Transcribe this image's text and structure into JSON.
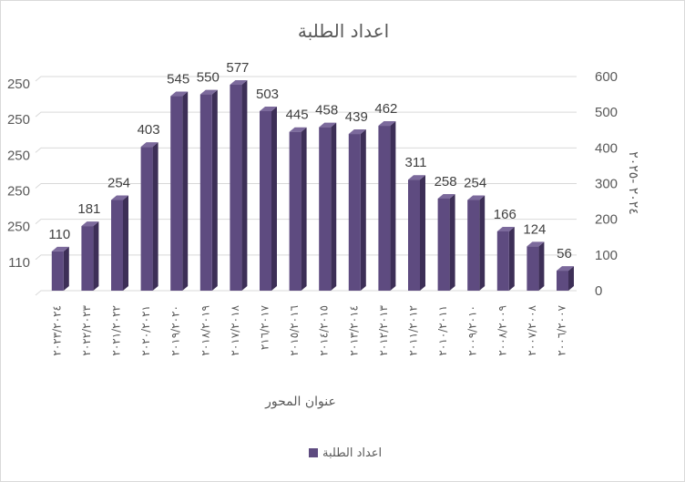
{
  "chart_data": {
    "type": "bar",
    "title": "اعداد الطلبة",
    "xlabel": "عنوان المحور",
    "ylabel": "٢٠٢٤ -٢٠٢٥",
    "ylim": [
      0,
      600
    ],
    "yticks": [
      "0",
      "100",
      "200",
      "300",
      "400",
      "500",
      "600"
    ],
    "left_axis_ticks": [
      "",
      "110",
      "250",
      "250",
      "250",
      "250",
      "250"
    ],
    "categories": [
      "٢٠٢٣/٢٠٢٤",
      "٢٠٢٢/٢٠٢٣",
      "٢٠٢١/٢٠٢٢",
      "٢٠٢٠/٢٠٢١",
      "٢٠١٩/٢٠٢٠",
      "٢٠١٨/٢٠١٩",
      "٢٠١٧/٢٠١٨",
      "٢١٦/٢٠١٧",
      "٢٠١٥/٢٠١٦",
      "٢٠١٤/٢٠١٥",
      "٢٠١٣/٢٠١٤",
      "٢٠١٢/٢٠١٣",
      "٢٠١١/٢٠١٢",
      "٢٠١٠/٢٠١١",
      "٢٠٠٩/٢٠١٠",
      "٢٠٠٨/٢٠٠٩",
      "٢٠٠٧/٢٠٠٨",
      "٢٠٠٦/٢٠٠٧"
    ],
    "series": [
      {
        "name": "اعداد الطلبة",
        "values": [
          110,
          181,
          254,
          403,
          545,
          550,
          577,
          503,
          445,
          458,
          439,
          462,
          311,
          258,
          254,
          166,
          124,
          56
        ]
      }
    ],
    "grid": true,
    "legend_position": "bottom",
    "colors": {
      "front": "#5e4b80",
      "side": "#3d2f57",
      "top": "#7c6a9c",
      "grid": "#d9d9d9",
      "text": "#595959"
    }
  }
}
